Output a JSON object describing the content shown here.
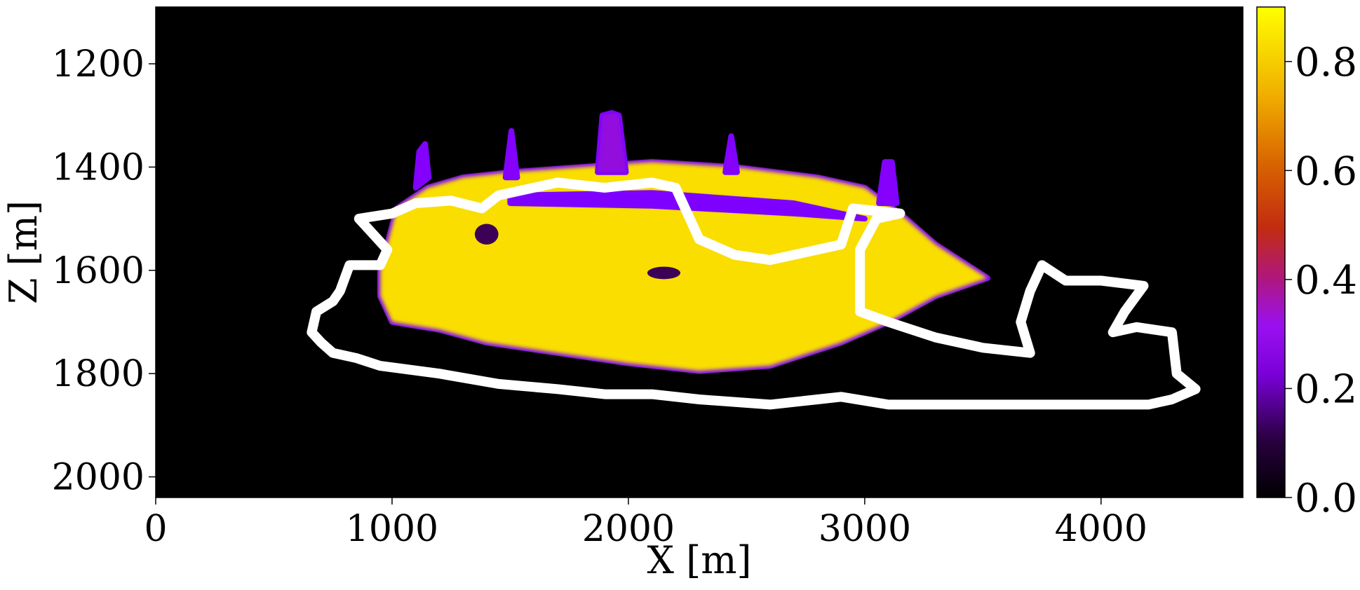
{
  "chart_data": {
    "type": "heatmap",
    "xlabel": "X [m]",
    "ylabel": "Z [m]",
    "xlim": [
      0,
      4600
    ],
    "ylim": [
      2040,
      1090
    ],
    "y_inverted": true,
    "xticks": [
      0,
      1000,
      2000,
      3000,
      4000
    ],
    "yticks": [
      1200,
      1400,
      1600,
      1800,
      2000
    ],
    "colorbar": {
      "colormap": "gnuplot",
      "range": [
        0.0,
        0.9
      ],
      "ticks": [
        "0.0",
        "0.2",
        "0.4",
        "0.6",
        "0.8"
      ],
      "tick_values": [
        0.0,
        0.2,
        0.4,
        0.6,
        0.8
      ]
    },
    "grid": false,
    "background_color": "#000000",
    "contour_color": "#ffffff",
    "field_regions": [
      {
        "name": "main-plume",
        "level": 0.86,
        "outline": [
          [
            950,
            1600
          ],
          [
            1020,
            1480
          ],
          [
            1150,
            1440
          ],
          [
            1300,
            1420
          ],
          [
            1500,
            1410
          ],
          [
            1800,
            1400
          ],
          [
            2100,
            1390
          ],
          [
            2450,
            1400
          ],
          [
            2800,
            1420
          ],
          [
            3000,
            1440
          ],
          [
            3150,
            1490
          ],
          [
            3300,
            1550
          ],
          [
            3520,
            1615
          ],
          [
            3300,
            1650
          ],
          [
            3100,
            1700
          ],
          [
            2900,
            1740
          ],
          [
            2600,
            1785
          ],
          [
            2300,
            1795
          ],
          [
            2000,
            1780
          ],
          [
            1700,
            1760
          ],
          [
            1400,
            1740
          ],
          [
            1200,
            1715
          ],
          [
            1000,
            1700
          ],
          [
            950,
            1650
          ]
        ]
      },
      {
        "name": "plume-finger-1",
        "level": 0.25,
        "outline": [
          [
            1100,
            1440
          ],
          [
            1115,
            1370
          ],
          [
            1140,
            1355
          ],
          [
            1155,
            1420
          ]
        ]
      },
      {
        "name": "plume-finger-2",
        "level": 0.25,
        "outline": [
          [
            1480,
            1420
          ],
          [
            1505,
            1330
          ],
          [
            1530,
            1420
          ]
        ]
      },
      {
        "name": "plume-finger-3",
        "level": 0.3,
        "outline": [
          [
            1870,
            1410
          ],
          [
            1890,
            1300
          ],
          [
            1930,
            1295
          ],
          [
            1960,
            1300
          ],
          [
            1990,
            1410
          ]
        ]
      },
      {
        "name": "plume-finger-4",
        "level": 0.25,
        "outline": [
          [
            2410,
            1410
          ],
          [
            2435,
            1340
          ],
          [
            2460,
            1410
          ]
        ]
      },
      {
        "name": "plume-finger-5",
        "level": 0.25,
        "outline": [
          [
            3060,
            1470
          ],
          [
            3085,
            1390
          ],
          [
            3115,
            1390
          ],
          [
            3135,
            1470
          ]
        ]
      },
      {
        "name": "inner-band",
        "level": 0.22,
        "outline": [
          [
            1500,
            1455
          ],
          [
            2100,
            1450
          ],
          [
            2700,
            1470
          ],
          [
            3000,
            1500
          ],
          [
            2700,
            1490
          ],
          [
            2100,
            1475
          ],
          [
            1500,
            1470
          ]
        ]
      }
    ],
    "dark_streaks": [
      {
        "name": "dark-lens-1",
        "level": 0.05,
        "center": [
          2150,
          1605
        ],
        "radius": [
          70,
          12
        ]
      },
      {
        "name": "dark-lens-2",
        "level": 0.05,
        "center": [
          1400,
          1530
        ],
        "radius": [
          50,
          20
        ]
      }
    ],
    "contours": [
      {
        "name": "outer-contour",
        "points": [
          [
            860,
            1500
          ],
          [
            1000,
            1490
          ],
          [
            1100,
            1470
          ],
          [
            1250,
            1465
          ],
          [
            1380,
            1480
          ],
          [
            1450,
            1455
          ],
          [
            1700,
            1430
          ],
          [
            1900,
            1440
          ],
          [
            2100,
            1430
          ],
          [
            2200,
            1440
          ],
          [
            2300,
            1540
          ],
          [
            2450,
            1570
          ],
          [
            2600,
            1580
          ],
          [
            2800,
            1560
          ],
          [
            2900,
            1550
          ],
          [
            2950,
            1480
          ],
          [
            3150,
            1490
          ],
          [
            3050,
            1500
          ],
          [
            2980,
            1560
          ],
          [
            2980,
            1680
          ],
          [
            3100,
            1700
          ],
          [
            3300,
            1730
          ],
          [
            3500,
            1750
          ],
          [
            3700,
            1760
          ],
          [
            3660,
            1700
          ],
          [
            3700,
            1640
          ],
          [
            3750,
            1590
          ],
          [
            3850,
            1620
          ],
          [
            4000,
            1620
          ],
          [
            4180,
            1630
          ],
          [
            4100,
            1680
          ],
          [
            4050,
            1720
          ],
          [
            4150,
            1710
          ],
          [
            4300,
            1720
          ],
          [
            4320,
            1800
          ],
          [
            4400,
            1830
          ],
          [
            4300,
            1850
          ],
          [
            4200,
            1860
          ],
          [
            3900,
            1860
          ],
          [
            3600,
            1860
          ],
          [
            3300,
            1860
          ],
          [
            3100,
            1860
          ],
          [
            2900,
            1845
          ],
          [
            2800,
            1850
          ],
          [
            2600,
            1860
          ],
          [
            2300,
            1850
          ],
          [
            2100,
            1840
          ],
          [
            1900,
            1840
          ],
          [
            1700,
            1830
          ],
          [
            1450,
            1820
          ],
          [
            1200,
            1800
          ],
          [
            950,
            1785
          ],
          [
            850,
            1770
          ],
          [
            750,
            1760
          ],
          [
            700,
            1740
          ],
          [
            660,
            1720
          ],
          [
            680,
            1680
          ],
          [
            750,
            1660
          ],
          [
            780,
            1640
          ],
          [
            820,
            1590
          ],
          [
            950,
            1590
          ],
          [
            980,
            1560
          ],
          [
            900,
            1520
          ],
          [
            860,
            1500
          ]
        ]
      }
    ]
  }
}
